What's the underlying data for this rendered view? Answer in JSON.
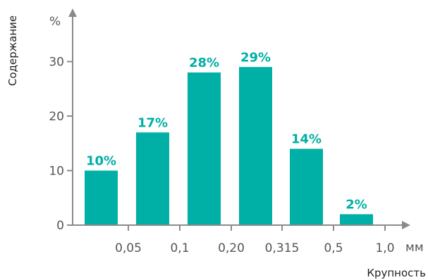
{
  "chart_data": {
    "type": "bar",
    "title": "",
    "ylabel": "Содержание",
    "y_unit": "%",
    "xlabel": "Крупность",
    "x_unit": "мм",
    "ylim": [
      0,
      40
    ],
    "y_ticks": [
      0,
      10,
      20,
      30
    ],
    "x_ticks": [
      "0,05",
      "0,1",
      "0,20",
      "0,315",
      "0,5",
      "1,0"
    ],
    "categories": [
      "<0,05",
      "0,05–0,1",
      "0,1–0,20",
      "0,20–0,315",
      "0,315–0,5",
      "0,5–1,0"
    ],
    "values": [
      10,
      17,
      28,
      29,
      14,
      2
    ],
    "data_labels": [
      "10%",
      "17%",
      "28%",
      "29%",
      "14%",
      "2%"
    ],
    "grid": false,
    "colors": {
      "bar": "#00afa5",
      "label": "#00afa5",
      "axis": "#8a8a8a"
    }
  }
}
